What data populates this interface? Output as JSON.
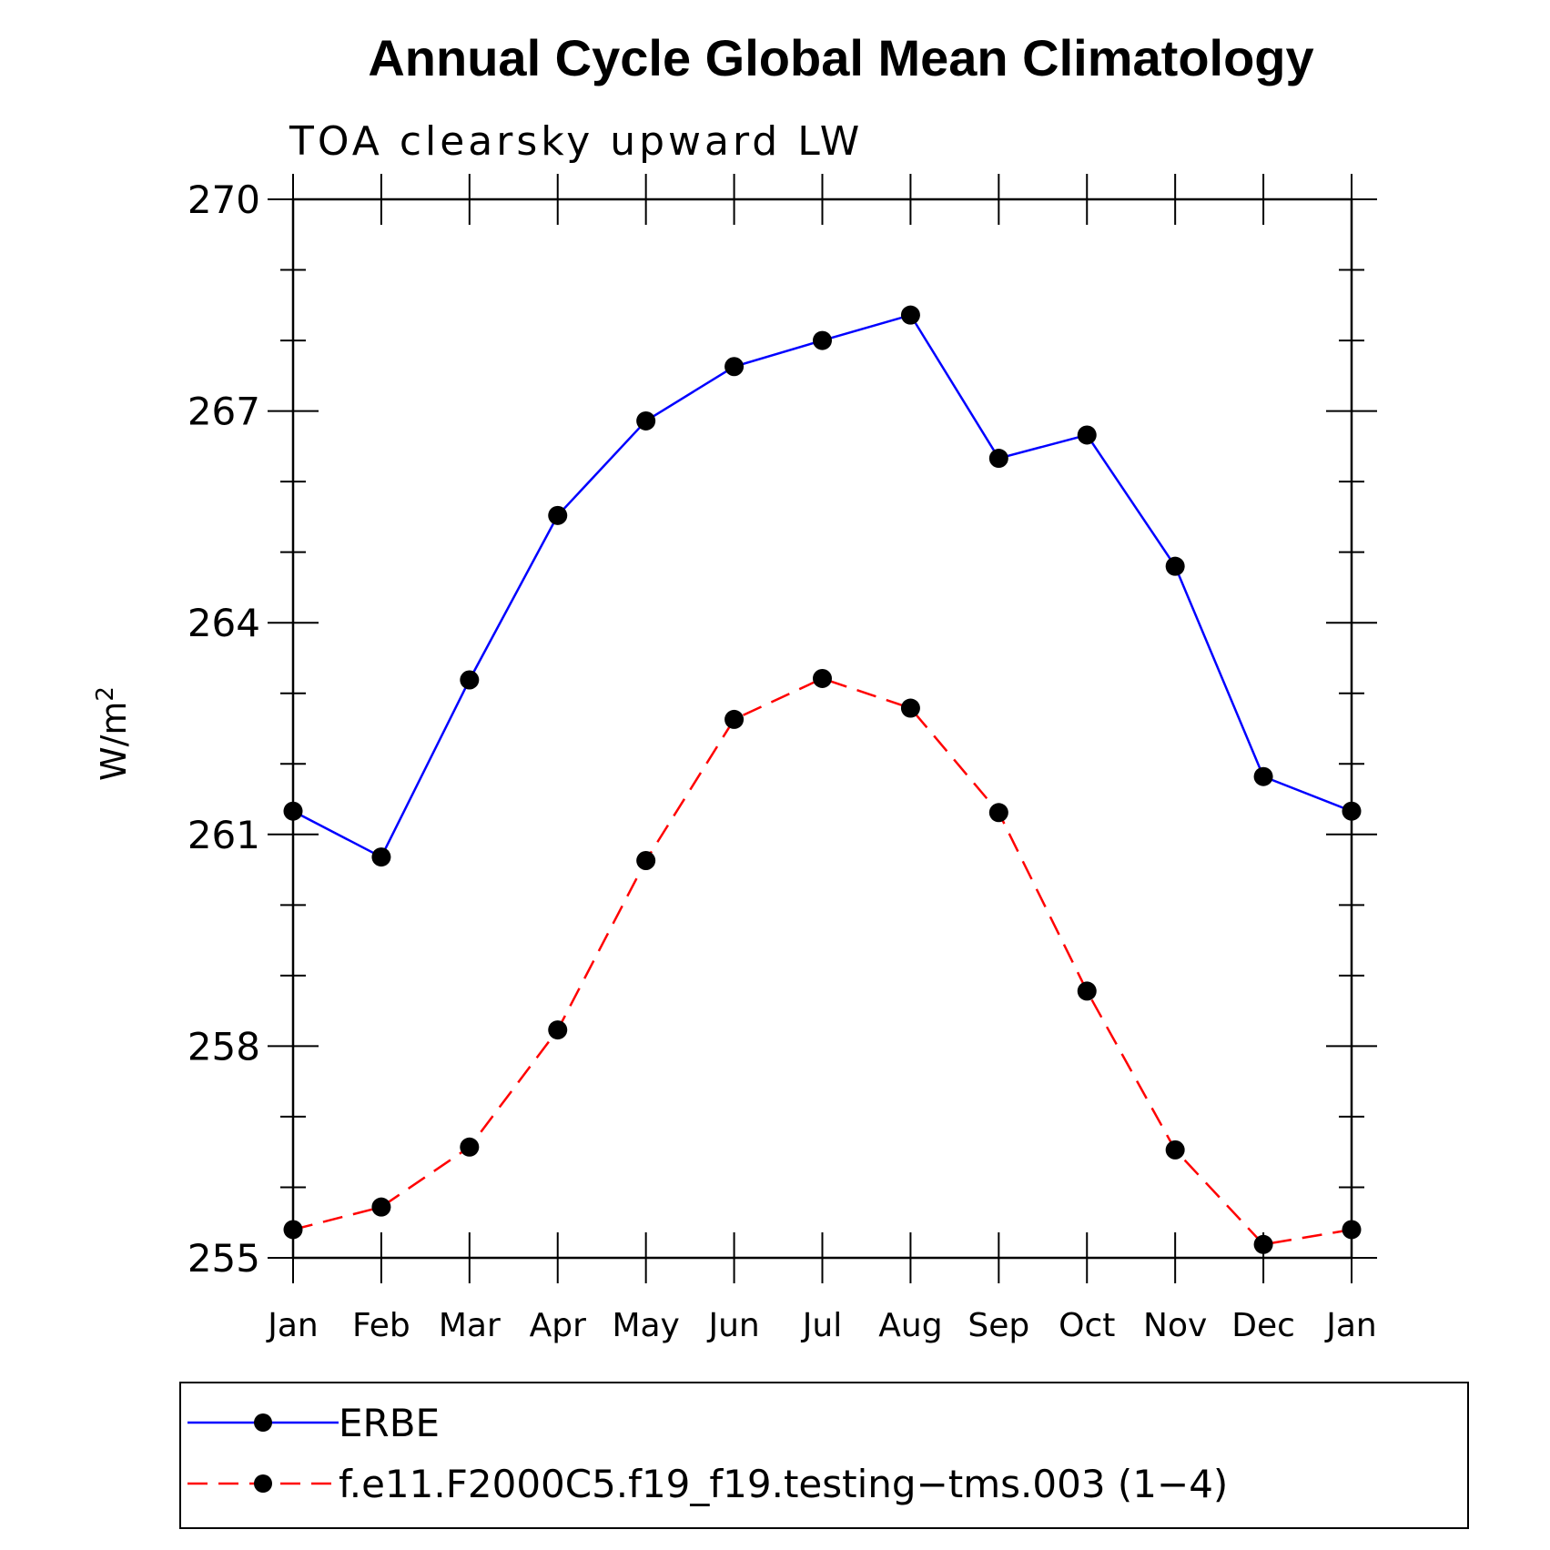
{
  "chart_data": {
    "type": "line",
    "title": "Annual Cycle Global Mean Climatology",
    "subtitle": "TOA clearsky upward LW",
    "ylabel_base": "W/m",
    "ylabel_sup": "2",
    "xlabel": "",
    "categories": [
      "Jan",
      "Feb",
      "Mar",
      "Apr",
      "May",
      "Jun",
      "Jul",
      "Aug",
      "Sep",
      "Oct",
      "Nov",
      "Dec",
      "Jan"
    ],
    "ylim": [
      255,
      270
    ],
    "yticks": [
      "270",
      "267",
      "264",
      "261",
      "258",
      "255"
    ],
    "ytick_values": [
      270,
      267,
      264,
      261,
      258,
      255
    ],
    "grid": false,
    "legend_position": "bottom",
    "series": [
      {
        "name": "ERBE",
        "color": "#0000ff",
        "line_style": "solid",
        "marker": "filled-circle",
        "values": [
          261.33,
          260.68,
          263.19,
          265.52,
          266.86,
          267.63,
          268.0,
          268.36,
          266.33,
          266.66,
          264.8,
          261.82,
          261.33
        ]
      },
      {
        "name": "f.e11.F2000C5.f19_f19.testing−tms.003 (1−4)",
        "color": "#ff0000",
        "line_style": "dashed",
        "marker": "filled-circle",
        "values": [
          255.4,
          255.72,
          256.57,
          258.23,
          260.63,
          262.63,
          263.21,
          262.79,
          261.31,
          258.78,
          256.53,
          255.19,
          255.4
        ]
      }
    ]
  }
}
